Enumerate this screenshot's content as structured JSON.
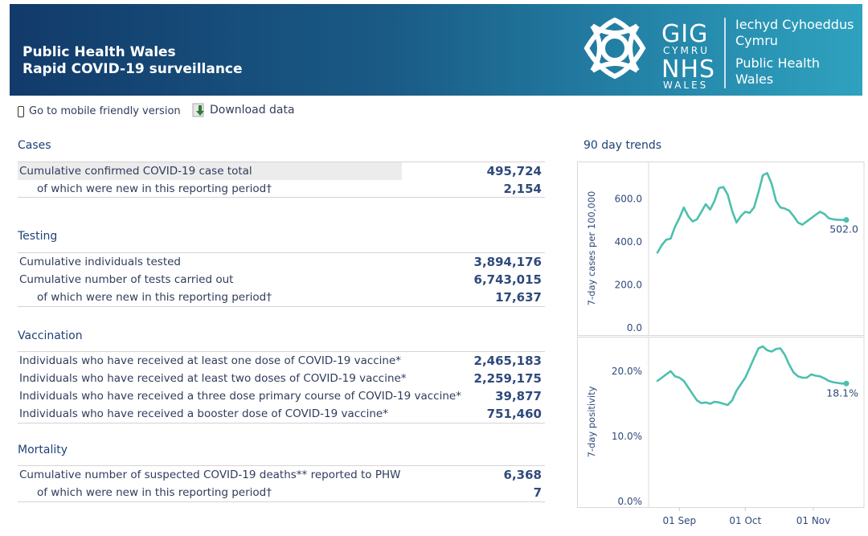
{
  "header": {
    "title_line1": "Public Health Wales",
    "title_line2": "Rapid COVID-19 surveillance",
    "logo_gig": "GIG",
    "logo_cymru": "CYMRU",
    "logo_nhs": "NHS",
    "logo_wales": "WALES",
    "brand_cy_line1": "Iechyd Cyhoeddus",
    "brand_cy_line2": "Cymru",
    "brand_en_line1": "Public Health",
    "brand_en_line2": "Wales"
  },
  "toolbar": {
    "mobile_label": "Go to mobile friendly version",
    "download_label": "Download data"
  },
  "cases": {
    "title": "Cases",
    "rows": [
      {
        "label": "Cumulative confirmed COVID-19 case total",
        "value": "495,724"
      },
      {
        "label": "of which were new in this reporting period†",
        "value": "2,154"
      }
    ]
  },
  "testing": {
    "title": "Testing",
    "rows": [
      {
        "label": "Cumulative individuals tested",
        "value": "3,894,176"
      },
      {
        "label": "Cumulative number of tests carried out",
        "value": "6,743,015"
      },
      {
        "label": "of which were new in this reporting period†",
        "value": "17,637"
      }
    ]
  },
  "vaccination": {
    "title": "Vaccination",
    "rows": [
      {
        "label": "Individuals who have received at least one dose of COVID-19 vaccine*",
        "value": "2,465,183"
      },
      {
        "label": "Individuals who have received at least two doses of COVID-19 vaccine*",
        "value": "2,259,175"
      },
      {
        "label": "Individuals who have received a three dose primary course of COVID-19 vaccine*",
        "value": "39,877"
      },
      {
        "label": "Individuals who have received a booster dose of COVID-19 vaccine*",
        "value": "751,460"
      }
    ]
  },
  "mortality": {
    "title": "Mortality",
    "rows": [
      {
        "label": "Cumulative number of suspected COVID-19 deaths** reported to PHW",
        "value": "6,368"
      },
      {
        "label": "of which were new in this reporting period†",
        "value": "7"
      }
    ]
  },
  "trends": {
    "title": "90 day trends",
    "line_color": "#4cc0ad"
  },
  "chart_data": [
    {
      "type": "line",
      "ylabel": "7-day cases per 100,000",
      "ylim": [
        0,
        740
      ],
      "yticks": [
        "0.0",
        "200.0",
        "400.0",
        "600.0"
      ],
      "ytick_values": [
        0,
        200,
        400,
        600
      ],
      "end_label": "502.0",
      "x": [
        "2021-08-22",
        "2021-08-24",
        "2021-08-26",
        "2021-08-28",
        "2021-08-30",
        "2021-09-01",
        "2021-09-03",
        "2021-09-05",
        "2021-09-07",
        "2021-09-09",
        "2021-09-11",
        "2021-09-13",
        "2021-09-15",
        "2021-09-17",
        "2021-09-19",
        "2021-09-21",
        "2021-09-23",
        "2021-09-25",
        "2021-09-27",
        "2021-09-29",
        "2021-10-01",
        "2021-10-03",
        "2021-10-05",
        "2021-10-07",
        "2021-10-09",
        "2021-10-11",
        "2021-10-13",
        "2021-10-15",
        "2021-10-17",
        "2021-10-19",
        "2021-10-21",
        "2021-10-23",
        "2021-10-25",
        "2021-10-27",
        "2021-10-29",
        "2021-10-31",
        "2021-11-02",
        "2021-11-04",
        "2021-11-06",
        "2021-11-08",
        "2021-11-10",
        "2021-11-12",
        "2021-11-14",
        "2021-11-16"
      ],
      "values": [
        350,
        385,
        410,
        415,
        470,
        510,
        560,
        520,
        495,
        505,
        540,
        575,
        550,
        590,
        650,
        655,
        620,
        545,
        490,
        520,
        540,
        535,
        560,
        630,
        710,
        720,
        670,
        590,
        560,
        555,
        545,
        520,
        490,
        480,
        495,
        510,
        525,
        540,
        530,
        510,
        505,
        503,
        502,
        502
      ]
    },
    {
      "type": "line",
      "ylabel": "7-day positivity",
      "ylim": [
        0,
        24.3
      ],
      "yticks": [
        "0.0%",
        "10.0%",
        "20.0%"
      ],
      "ytick_values": [
        0,
        10,
        20
      ],
      "end_label": "18.1%",
      "x": [
        "2021-08-22",
        "2021-08-24",
        "2021-08-26",
        "2021-08-28",
        "2021-08-30",
        "2021-09-01",
        "2021-09-03",
        "2021-09-05",
        "2021-09-07",
        "2021-09-09",
        "2021-09-11",
        "2021-09-13",
        "2021-09-15",
        "2021-09-17",
        "2021-09-19",
        "2021-09-21",
        "2021-09-23",
        "2021-09-25",
        "2021-09-27",
        "2021-09-29",
        "2021-10-01",
        "2021-10-03",
        "2021-10-05",
        "2021-10-07",
        "2021-10-09",
        "2021-10-11",
        "2021-10-13",
        "2021-10-15",
        "2021-10-17",
        "2021-10-19",
        "2021-10-21",
        "2021-10-23",
        "2021-10-25",
        "2021-10-27",
        "2021-10-29",
        "2021-10-31",
        "2021-11-02",
        "2021-11-04",
        "2021-11-06",
        "2021-11-08",
        "2021-11-10",
        "2021-11-12",
        "2021-11-14",
        "2021-11-16"
      ],
      "values": [
        18.5,
        19.0,
        19.5,
        20.0,
        19.2,
        19.0,
        18.5,
        17.5,
        16.5,
        15.5,
        15.1,
        15.2,
        15.0,
        15.3,
        15.2,
        15.0,
        14.8,
        15.5,
        17.0,
        18.0,
        19.0,
        20.5,
        22.0,
        23.5,
        23.8,
        23.2,
        23.0,
        23.4,
        23.5,
        22.5,
        21.0,
        19.8,
        19.2,
        19.0,
        19.0,
        19.5,
        19.3,
        19.2,
        18.9,
        18.5,
        18.3,
        18.2,
        18.1,
        18.1
      ]
    }
  ],
  "x_axis": {
    "ticks": [
      "01 Sep",
      "01 Oct",
      "01 Nov"
    ],
    "tick_dates": [
      "2021-09-01",
      "2021-10-01",
      "2021-11-01"
    ]
  }
}
